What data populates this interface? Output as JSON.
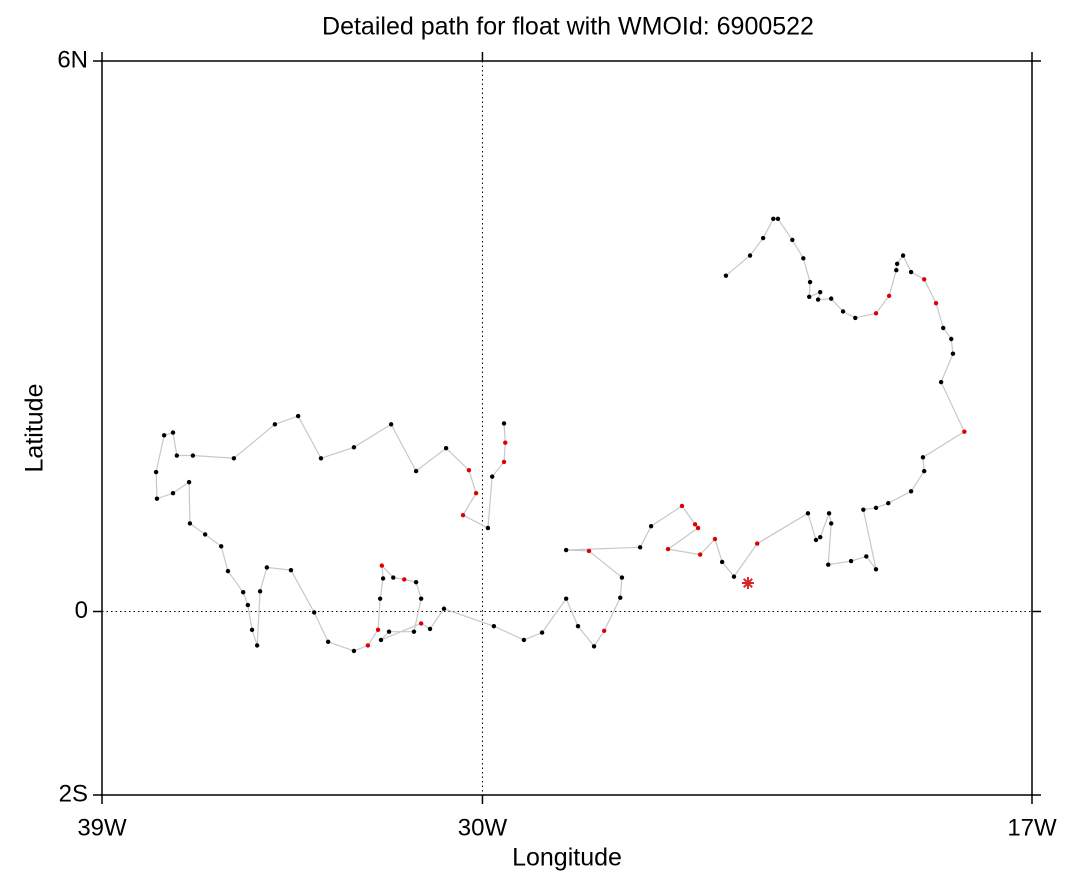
{
  "chart_data": {
    "type": "line",
    "title": "Detailed path for float with WMOId: 6900522",
    "x_label": "Longitude",
    "y_label": "Latitude",
    "xlim": [
      -39,
      -17
    ],
    "ylim": [
      -2,
      6
    ],
    "xticks": [
      {
        "value": -39,
        "label": "39W"
      },
      {
        "value": -30,
        "label": "30W"
      },
      {
        "value": -17,
        "label": "17W"
      }
    ],
    "yticks": [
      {
        "value": -2,
        "label": "2S"
      },
      0,
      {
        "value": 6,
        "label": "6N"
      }
    ],
    "grid": true,
    "series": [
      {
        "line_color": "#c8c8c8",
        "x": [
          -29.49,
          -29.46,
          -29.49,
          -29.77,
          -29.87,
          -30.46,
          -30.15,
          -30.32,
          -30.86,
          -31.57,
          -32.16,
          -33.04,
          -33.82,
          -34.36,
          -34.91,
          -35.88,
          -36.85,
          -37.23,
          -37.32,
          -37.53,
          -37.72,
          -37.7,
          -37.32,
          -36.94,
          -36.92,
          -36.56,
          -36.18,
          -36.02,
          -35.66,
          -35.55,
          -35.45,
          -35.33,
          -35.26,
          -35.1,
          -34.53,
          -33.98,
          -33.65,
          -33.04,
          -32.71,
          -32.47,
          -32.42,
          -32.35,
          -32.38,
          -32.11,
          -31.85,
          -31.57,
          -31.45,
          -31.62,
          -32.21,
          -32.4,
          -31.45,
          -31.24,
          -30.91,
          -29.73,
          -29.02,
          -28.59,
          -28.02,
          -27.74,
          -27.36,
          -27.12,
          -26.74,
          -26.7,
          -27.48,
          -28.02,
          -26.27,
          -26.01,
          -25.28,
          -24.97,
          -24.9,
          -25.61,
          -24.85,
          -24.5,
          -24.33,
          -24.05,
          -23.5,
          -22.3,
          -22.11,
          -22.01,
          -21.8,
          -21.75,
          -21.82,
          -21.28,
          -20.92,
          -20.69,
          -20.99,
          -20.69,
          -20.4,
          -19.86,
          -19.55,
          -19.58,
          -18.6,
          -19.15,
          -18.87,
          -18.91,
          -19.1,
          -19.27,
          -19.55,
          -19.86,
          -20.05,
          -20.19,
          -20.21,
          -20.38,
          -20.69,
          -21.18,
          -21.47,
          -21.75,
          -22.06,
          -22.01,
          -22.27,
          -22.25,
          -22.41,
          -22.67,
          -23.01,
          -23.12,
          -23.36,
          -23.67,
          -24.24
        ],
        "values": [
          2.05,
          1.84,
          1.63,
          1.47,
          0.91,
          1.05,
          1.29,
          1.54,
          1.78,
          1.53,
          2.04,
          1.79,
          1.67,
          2.13,
          2.04,
          1.67,
          1.7,
          1.7,
          1.95,
          1.92,
          1.52,
          1.23,
          1.29,
          1.41,
          0.96,
          0.84,
          0.71,
          0.44,
          0.21,
          0.07,
          -0.2,
          -0.37,
          0.22,
          0.48,
          0.45,
          -0.01,
          -0.33,
          -0.43,
          -0.37,
          -0.2,
          0.14,
          0.36,
          0.5,
          0.37,
          0.35,
          0.32,
          0.14,
          -0.22,
          -0.22,
          -0.31,
          -0.13,
          -0.19,
          0.03,
          -0.16,
          -0.31,
          -0.23,
          0.14,
          -0.16,
          -0.38,
          -0.21,
          0.15,
          0.37,
          0.66,
          0.67,
          0.7,
          0.93,
          1.15,
          0.95,
          0.91,
          0.68,
          0.62,
          0.79,
          0.54,
          0.38,
          0.74,
          1.07,
          0.78,
          0.81,
          1.07,
          0.96,
          0.51,
          0.55,
          0.6,
          0.46,
          1.11,
          1.13,
          1.18,
          1.31,
          1.53,
          1.68,
          1.96,
          2.5,
          2.81,
          2.97,
          3.09,
          3.36,
          3.62,
          3.7,
          3.88,
          3.79,
          3.72,
          3.44,
          3.25,
          3.2,
          3.27,
          3.41,
          3.4,
          3.48,
          3.43,
          3.59,
          3.85,
          4.05,
          4.28,
          4.28,
          4.07,
          3.88,
          3.66
        ],
        "marker_colors": [
          "#000000",
          "#e00000",
          "#e00000",
          "#000000",
          "#000000",
          "#e00000",
          "#e00000",
          "#e00000",
          "#000000",
          "#000000",
          "#000000",
          "#000000",
          "#000000",
          "#000000",
          "#000000",
          "#000000",
          "#000000",
          "#000000",
          "#000000",
          "#000000",
          "#000000",
          "#000000",
          "#000000",
          "#000000",
          "#000000",
          "#000000",
          "#000000",
          "#000000",
          "#000000",
          "#000000",
          "#000000",
          "#000000",
          "#000000",
          "#000000",
          "#000000",
          "#000000",
          "#000000",
          "#000000",
          "#e00000",
          "#e00000",
          "#000000",
          "#000000",
          "#e00000",
          "#000000",
          "#e00000",
          "#000000",
          "#000000",
          "#000000",
          "#000000",
          "#000000",
          "#e00000",
          "#000000",
          "#000000",
          "#000000",
          "#000000",
          "#000000",
          "#000000",
          "#000000",
          "#000000",
          "#e00000",
          "#000000",
          "#000000",
          "#e00000",
          "#000000",
          "#000000",
          "#000000",
          "#e00000",
          "#e00000",
          "#e00000",
          "#e00000",
          "#e00000",
          "#e00000",
          "#000000",
          "#000000",
          "#e00000",
          "#000000",
          "#000000",
          "#000000",
          "#000000",
          "#000000",
          "#000000",
          "#000000",
          "#000000",
          "#000000",
          "#000000",
          "#000000",
          "#000000",
          "#000000",
          "#000000",
          "#000000",
          "#e00000",
          "#000000",
          "#000000",
          "#000000",
          "#000000",
          "#e00000",
          "#e00000",
          "#000000",
          "#000000",
          "#000000",
          "#000000",
          "#e00000",
          "#e00000",
          "#000000",
          "#000000",
          "#000000",
          "#000000",
          "#000000",
          "#000000",
          "#000000",
          "#000000",
          "#000000",
          "#000000",
          "#000000",
          "#000000",
          "#000000",
          "#000000"
        ]
      },
      {
        "marker": "star",
        "color": "#d62728",
        "x": [
          -23.72
        ],
        "values": [
          0.31
        ]
      }
    ]
  }
}
